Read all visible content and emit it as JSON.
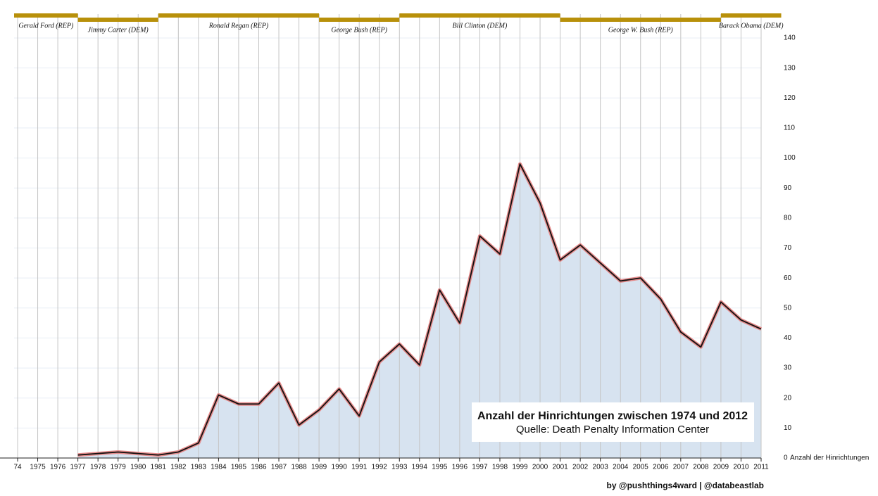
{
  "chart_data": {
    "type": "area",
    "x": [
      1974,
      1975,
      1976,
      1977,
      1978,
      1979,
      1980,
      1981,
      1982,
      1983,
      1984,
      1985,
      1986,
      1987,
      1988,
      1989,
      1990,
      1991,
      1992,
      1993,
      1994,
      1995,
      1996,
      1997,
      1998,
      1999,
      2000,
      2001,
      2002,
      2003,
      2004,
      2005,
      2006,
      2007,
      2008,
      2009,
      2010,
      2011
    ],
    "values": [
      null,
      null,
      null,
      1,
      1.5,
      2,
      1.5,
      1,
      2,
      5,
      21,
      18,
      18,
      25,
      11,
      16,
      23,
      14,
      32,
      38,
      31,
      56,
      45,
      74,
      68,
      98,
      85,
      66,
      71,
      65,
      59,
      60,
      53,
      42,
      37,
      52,
      46,
      43
    ],
    "xlim": [
      1974,
      2011
    ],
    "xticks": [
      {
        "value": 1974,
        "label": "74"
      },
      1975,
      1976,
      1977,
      1978,
      1979,
      1980,
      1981,
      1982,
      1983,
      1984,
      1985,
      1986,
      1987,
      1988,
      1989,
      1990,
      1991,
      1992,
      1993,
      1994,
      1995,
      1996,
      1997,
      1998,
      1999,
      2000,
      2001,
      2002,
      2003,
      2004,
      2005,
      2006,
      2007,
      2008,
      2009,
      2010,
      2011
    ],
    "ylim": [
      0,
      140
    ],
    "yticks": [
      0,
      10,
      20,
      30,
      40,
      50,
      60,
      70,
      80,
      90,
      100,
      110,
      120,
      130,
      140
    ],
    "ylabel": "Anzahl der Hinrichtungen",
    "fill_color": "#d7e3f0",
    "line_color": "#111111",
    "halo_color": "#e58a8a",
    "grid": true,
    "presidents": [
      {
        "name": "Gerald Ford (REP)",
        "start": 1974,
        "end": 1977
      },
      {
        "name": "Jimmy Carter (DEM)",
        "start": 1977,
        "end": 1981
      },
      {
        "name": "Ronald Regan (REP)",
        "start": 1981,
        "end": 1989
      },
      {
        "name": "George Bush (REP)",
        "start": 1989,
        "end": 1993
      },
      {
        "name": "Bill Clinton (DEM)",
        "start": 1993,
        "end": 2001
      },
      {
        "name": "George W. Bush (REP)",
        "start": 2001,
        "end": 2009
      },
      {
        "name": "Barack Obama (DEM)",
        "start": 2009,
        "end": 2012
      }
    ],
    "president_color": "#b8900a",
    "annotation_title": "Anzahl der Hinrichtungen zwischen 1974 und 2012",
    "annotation_source": "Quelle: Death Penalty Information Center",
    "credit": "by @pushthings4ward | @databeastlab"
  }
}
